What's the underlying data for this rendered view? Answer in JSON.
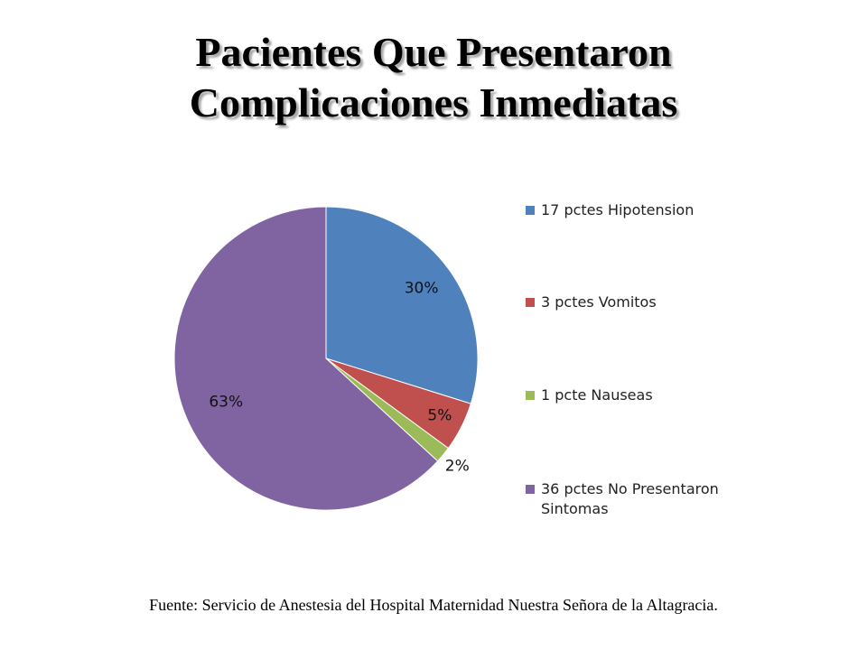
{
  "title": {
    "line1": "Pacientes Que Presentaron",
    "line2": "Complicaciones Inmediatas"
  },
  "chart_data": {
    "type": "pie",
    "title": "Pacientes Que Presentaron Complicaciones Inmediatas",
    "start_angle_deg": 0,
    "direction": "clockwise",
    "legend_position": "right",
    "slices": [
      {
        "label": "17 pctes Hipotension",
        "value": 17,
        "percent_label": "30%",
        "color": "#4f81bd"
      },
      {
        "label": "3 pctes Vomitos",
        "value": 3,
        "percent_label": "5%",
        "color": "#c0504d"
      },
      {
        "label": "1 pcte Nauseas",
        "value": 1,
        "percent_label": "2%",
        "color": "#9bbb59"
      },
      {
        "label": "36 pctes No Presentaron Sintomas",
        "value": 36,
        "percent_label": "63%",
        "color": "#8064a2"
      }
    ]
  },
  "source": "Fuente: Servicio de Anestesia del Hospital Maternidad Nuestra Señora de la Altagracia."
}
